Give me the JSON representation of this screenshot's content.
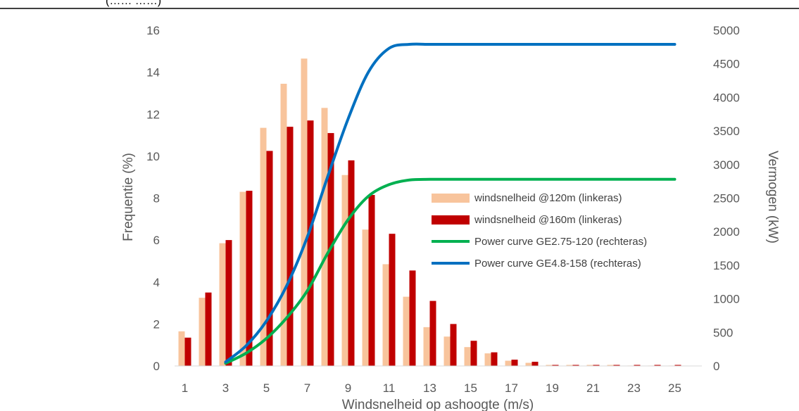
{
  "header_fragment": "(…… ……)",
  "chart_data": {
    "type": "bar",
    "categories": [
      1,
      2,
      3,
      4,
      5,
      6,
      7,
      8,
      9,
      10,
      11,
      12,
      13,
      14,
      15,
      16,
      17,
      18,
      19,
      20,
      21,
      22,
      23,
      24,
      25
    ],
    "x_tick_labels": [
      "1",
      "3",
      "5",
      "7",
      "9",
      "11",
      "13",
      "15",
      "17",
      "19",
      "21",
      "23",
      "25"
    ],
    "xlabel": "Windsnelheid op ashoogte (m/s)",
    "ylabel": "Frequentie (%)",
    "y2label": "Vermogen (kW)",
    "ylim": [
      0,
      16
    ],
    "y_ticks": [
      0,
      2,
      4,
      6,
      8,
      10,
      12,
      14,
      16
    ],
    "y2lim": [
      0,
      5000
    ],
    "y2_ticks": [
      0,
      500,
      1000,
      1500,
      2000,
      2500,
      3000,
      3500,
      4000,
      4500,
      5000
    ],
    "grid": false,
    "legend_position": "center-right",
    "series": [
      {
        "name": "windsnelheid @120m (linkeras)",
        "type": "bar",
        "axis": "left",
        "color": "#F8C49C",
        "values": [
          1.65,
          3.25,
          5.85,
          8.3,
          11.35,
          13.45,
          14.65,
          12.3,
          9.1,
          6.5,
          4.85,
          3.3,
          1.85,
          1.4,
          0.9,
          0.6,
          0.25,
          0.15,
          0.05,
          0.05,
          0.05,
          0.05,
          0.02,
          0.02,
          0.02
        ]
      },
      {
        "name": "windsnelheid @160m (linkeras)",
        "type": "bar",
        "axis": "left",
        "color": "#C00000",
        "values": [
          1.35,
          3.5,
          6.0,
          8.35,
          10.25,
          11.4,
          11.7,
          11.1,
          9.8,
          8.15,
          6.3,
          4.55,
          3.1,
          2.0,
          1.2,
          0.65,
          0.3,
          0.2,
          0.05,
          0.05,
          0.05,
          0.05,
          0.05,
          0.05,
          0.05
        ]
      },
      {
        "name": "Power curve GE2.75-120 (rechteras)",
        "type": "line",
        "axis": "right",
        "color": "#00B050",
        "x": [
          3,
          4,
          5,
          6,
          7,
          8,
          9,
          10,
          11,
          12,
          13,
          14,
          15,
          16,
          17,
          18,
          19,
          20,
          21,
          22,
          23,
          24,
          25
        ],
        "values": [
          40,
          190,
          410,
          720,
          1120,
          1680,
          2180,
          2530,
          2700,
          2770,
          2780,
          2780,
          2780,
          2780,
          2780,
          2780,
          2780,
          2780,
          2780,
          2780,
          2780,
          2780,
          2780
        ]
      },
      {
        "name": "Power curve GE4.8-158 (rechteras)",
        "type": "line",
        "axis": "right",
        "color": "#0070C0",
        "x": [
          3,
          4,
          5,
          6,
          7,
          8,
          9,
          10,
          11,
          12,
          13,
          14,
          15,
          16,
          17,
          18,
          19,
          20,
          21,
          22,
          23,
          24,
          25
        ],
        "values": [
          60,
          300,
          670,
          1200,
          1920,
          2820,
          3680,
          4380,
          4730,
          4790,
          4790,
          4790,
          4790,
          4790,
          4790,
          4790,
          4790,
          4790,
          4790,
          4790,
          4790,
          4790,
          4790
        ]
      }
    ]
  }
}
